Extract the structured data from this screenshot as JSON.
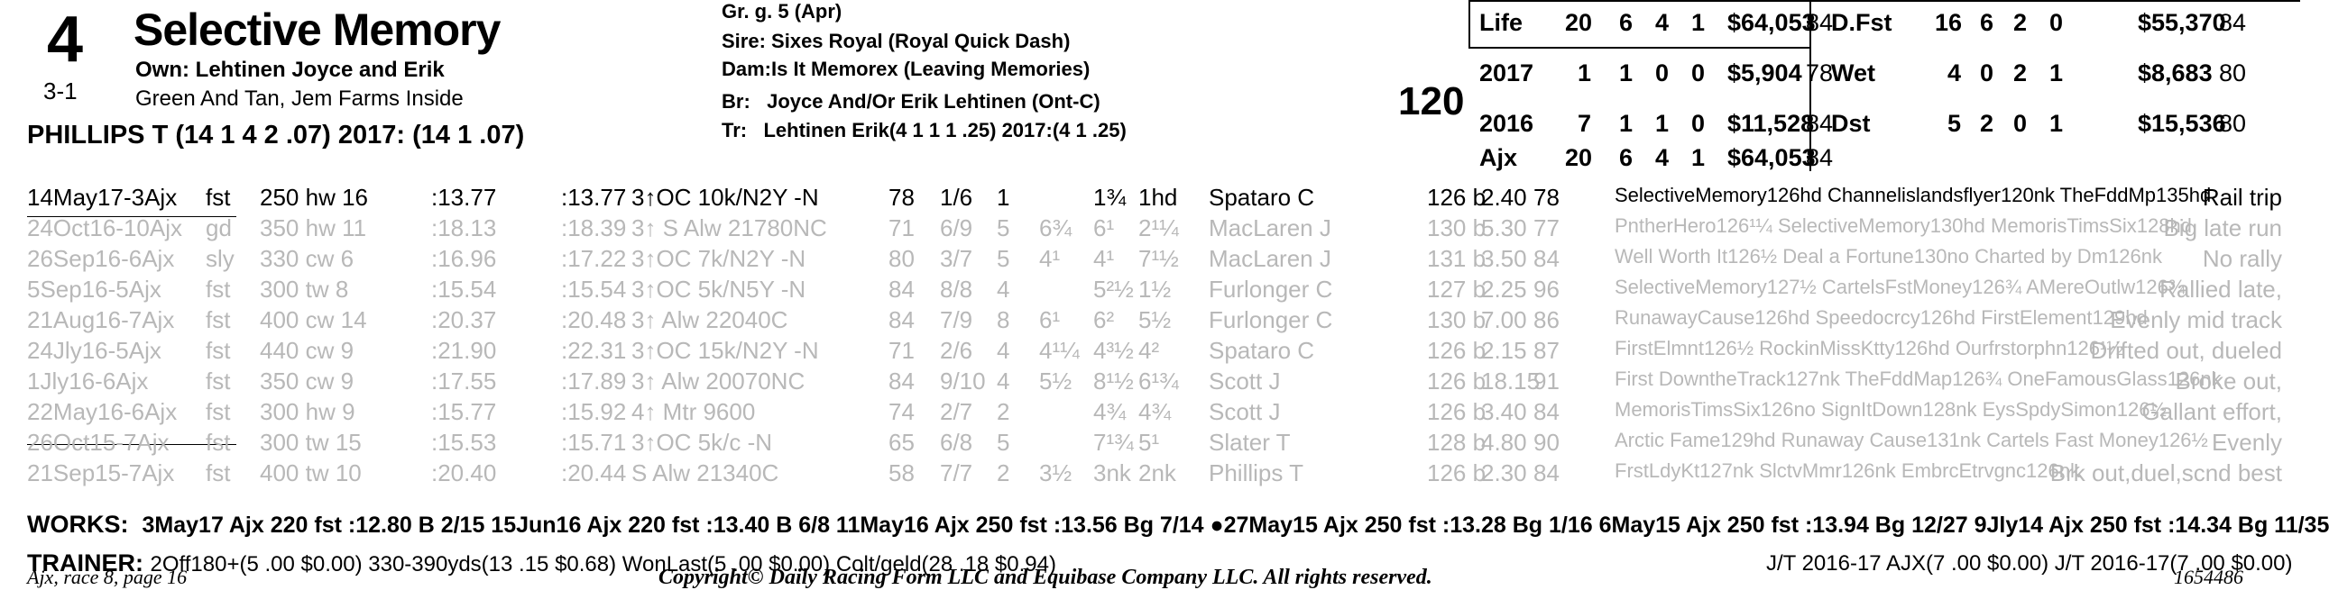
{
  "horse": {
    "number": "4",
    "odds": "3-1",
    "name": "Selective Memory",
    "owner": "Own: Lehtinen Joyce and Erik",
    "silks": "Green And Tan, Jem Farms Inside",
    "jockey": "PHILLIPS T (14 1 4 2 .07) 2017: (14 1 .07)"
  },
  "pedigree": {
    "sex_age": "Gr. g. 5 (Apr)",
    "sire_label": "Sire:",
    "sire": "Sixes Royal (Royal Quick Dash)",
    "dam_label": "Dam:",
    "dam": "Is It Memorex (Leaving Memories)",
    "br_label": "Br:",
    "breeder": "Joyce And/Or Erik Lehtinen (Ont-C)",
    "tr_label": "Tr:",
    "trainer": "Lehtinen Erik(4 1 1 1 .25) 2017:(4 1 .25)"
  },
  "weight": "120",
  "stats_left": [
    {
      "label": "Life",
      "starts": "20",
      "w": "6",
      "p": "4",
      "s": "1",
      "earn": "$64,053",
      "fig": "84"
    },
    {
      "label": "2017",
      "starts": "1",
      "w": "1",
      "p": "0",
      "s": "0",
      "earn": "$5,904",
      "fig": "78"
    },
    {
      "label": "2016",
      "starts": "7",
      "w": "1",
      "p": "1",
      "s": "0",
      "earn": "$11,528",
      "fig": "84"
    },
    {
      "label": "Ajx",
      "starts": "20",
      "w": "6",
      "p": "4",
      "s": "1",
      "earn": "$64,053",
      "fig": "84"
    }
  ],
  "stats_right": [
    {
      "label": "D.Fst",
      "starts": "16",
      "w": "6",
      "p": "2",
      "s": "0",
      "earn": "$55,370",
      "fig": "84"
    },
    {
      "label": "Wet",
      "starts": "4",
      "w": "0",
      "p": "2",
      "s": "1",
      "earn": "$8,683",
      "fig": "80"
    },
    {
      "label": "Dst",
      "starts": "5",
      "w": "2",
      "p": "0",
      "s": "1",
      "earn": "$15,536",
      "fig": "80"
    }
  ],
  "pp": [
    {
      "date": "14May17-3Ajx",
      "cond": "fst",
      "dist": "250 hw 16",
      "t1": ":13.77",
      "t2": ":13.77",
      "race": "3↑OC 10k/N2Y -N",
      "fig": "78",
      "pp": "1/6",
      "st": "1",
      "c1": "",
      "c2": "1¾",
      "fin": "1hd",
      "jockey": "Spataro C",
      "wt": "126 b",
      "odds": "2.40",
      "sp": "78",
      "comp": "SelectiveMemory126hd Channelislandsflyer120nk TheFddMp135hd",
      "comment": "Rail trip"
    },
    {
      "date": "24Oct16-10Ajx",
      "cond": "gd",
      "dist": "350 hw 11",
      "t1": ":18.13",
      "t2": ":18.39",
      "race": "3↑ S Alw 21780NC",
      "fig": "71",
      "pp": "6/9",
      "st": "5",
      "c1": "6¾",
      "c2": "6¹",
      "fin": "2¹¼",
      "jockey": "MacLaren J",
      "wt": "130 b",
      "odds": "5.30",
      "sp": "77",
      "comp": "PntherHero126¹¼ SelectiveMemory130hd MemorisTimsSix128hd",
      "comment": "Big late run"
    },
    {
      "date": "26Sep16-6Ajx",
      "cond": "sly",
      "dist": "330 cw 6",
      "t1": ":16.96",
      "t2": ":17.22",
      "race": "3↑OC 7k/N2Y -N",
      "fig": "80",
      "pp": "3/7",
      "st": "5",
      "c1": "4¹",
      "c2": "4¹",
      "fin": "7¹½",
      "jockey": "MacLaren J",
      "wt": "131 b",
      "odds": "3.50",
      "sp": "84",
      "comp": "Well Worth It126½ Deal a Fortune130no Charted by Dm126nk",
      "comment": "No rally"
    },
    {
      "date": "5Sep16-5Ajx",
      "cond": "fst",
      "dist": "300 tw 8",
      "t1": ":15.54",
      "t2": ":15.54",
      "race": "3↑OC 5k/N5Y -N",
      "fig": "84",
      "pp": "8/8",
      "st": "4",
      "c1": "",
      "c2": "5²½",
      "fin": "1½",
      "jockey": "Furlonger C",
      "wt": "127 b",
      "odds": "2.25",
      "sp": "96",
      "comp": "SelectiveMemory127½ CartelsFstMoney126¾ AMereOutlw126¾",
      "comment": "Rallied late,"
    },
    {
      "date": "21Aug16-7Ajx",
      "cond": "fst",
      "dist": "400 cw 14",
      "t1": ":20.37",
      "t2": ":20.48",
      "race": "3↑ Alw 22040C",
      "fig": "84",
      "pp": "7/9",
      "st": "8",
      "c1": "6¹",
      "c2": "6²",
      "fin": "5½",
      "jockey": "Furlonger C",
      "wt": "130 b",
      "odds": "7.00",
      "sp": "86",
      "comp": "RunawayCause126hd Speedocrcy126hd FirstElement129hd",
      "comment": "Evenly mid track"
    },
    {
      "date": "24Jly16-5Ajx",
      "cond": "fst",
      "dist": "440 cw 9",
      "t1": ":21.90",
      "t2": ":22.31",
      "race": "3↑OC 15k/N2Y -N",
      "fig": "71",
      "pp": "2/6",
      "st": "4",
      "c1": "4¹¼",
      "c2": "4³½",
      "fin": "4²",
      "jockey": "Spataro C",
      "wt": "126 b",
      "odds": "2.15",
      "sp": "87",
      "comp": "FirstElmnt126½ RockinMissKtty126hd Ourfrstorphn126¹½",
      "comment": "Drifted out, dueled"
    },
    {
      "date": "1Jly16-6Ajx",
      "cond": "fst",
      "dist": "350 cw 9",
      "t1": ":17.55",
      "t2": ":17.89",
      "race": "3↑ Alw 20070NC",
      "fig": "84",
      "pp": "9/10",
      "st": "4",
      "c1": "5½",
      "c2": "8¹½",
      "fin": "6¹¾",
      "jockey": "Scott J",
      "wt": "126 b",
      "odds": "18.15",
      "sp": "91",
      "comp": "First DowntheTrack127nk TheFddMap126¾ OneFamousGlass126nk",
      "comment": "Broke out,"
    },
    {
      "date": "22May16-6Ajx",
      "cond": "fst",
      "dist": "300 hw 9",
      "t1": ":15.77",
      "t2": ":15.92",
      "race": "4↑ Mtr 9600",
      "fig": "74",
      "pp": "2/7",
      "st": "2",
      "c1": "",
      "c2": "4¾",
      "fin": "4¾",
      "jockey": "Scott J",
      "wt": "126 b",
      "odds": "3.40",
      "sp": "84",
      "comp": "MemorisTimsSix126no SignItDown128nk EysSpdySimon126½",
      "comment": "Gallant effort,"
    },
    {
      "date": "26Oct15-7Ajx",
      "cond": "fst",
      "dist": "300 tw 15",
      "t1": ":15.53",
      "t2": ":15.71",
      "race": "3↑OC 5k/c -N",
      "fig": "65",
      "pp": "6/8",
      "st": "5",
      "c1": "",
      "c2": "7¹¾",
      "fin": "5¹",
      "jockey": "Slater T",
      "wt": "128 b",
      "odds": "4.80",
      "sp": "90",
      "comp": "Arctic Fame129hd Runaway Cause131nk Cartels Fast Money126½",
      "comment": "Evenly"
    },
    {
      "date": "21Sep15-7Ajx",
      "cond": "fst",
      "dist": "400 tw 10",
      "t1": ":20.40",
      "t2": ":20.44",
      "race": "S Alw 21340C",
      "fig": "58",
      "pp": "7/7",
      "st": "2",
      "c1": "3½",
      "c2": "3nk",
      "fin": "2nk",
      "jockey": "Phillips T",
      "wt": "126 b",
      "odds": "2.30",
      "sp": "84",
      "comp": "FrstLdyKt127nk SlctvMmr126nk EmbrcEtrvgnc126nk",
      "comment": "Brk out,duel,scnd best"
    }
  ],
  "works_label": "WORKS:",
  "works": "3May17 Ajx 220 fst :12.80 B 2/15   15Jun16 Ajx 220 fst :13.40 B 6/8   11May16 Ajx 250 fst :13.56 Bg 7/14   ●27May15 Ajx 250 fst :13.28 Bg 1/16   6May15 Ajx 250 fst :13.94 Bg 12/27   9Jly14 Ajx 250 fst :14.34 Bg 11/35",
  "trainer_label": "TRAINER:",
  "trainer_stats": "2Off180+(5 .00 $0.00) 330-390yds(13 .15 $0.68) WonLast(5 .00 $0.00) Colt/geld(28 .18 $0.94)",
  "jt_stats": "J/T 2016-17 AJX(7 .00 $0.00)  J/T 2016-17(7 .00 $0.00)",
  "footer_left": "Ajx, race 8, page 16",
  "footer_center": "Copyright© Daily Racing Form LLC and Equibase Company LLC. All rights reserved.",
  "footer_right": "1654486"
}
